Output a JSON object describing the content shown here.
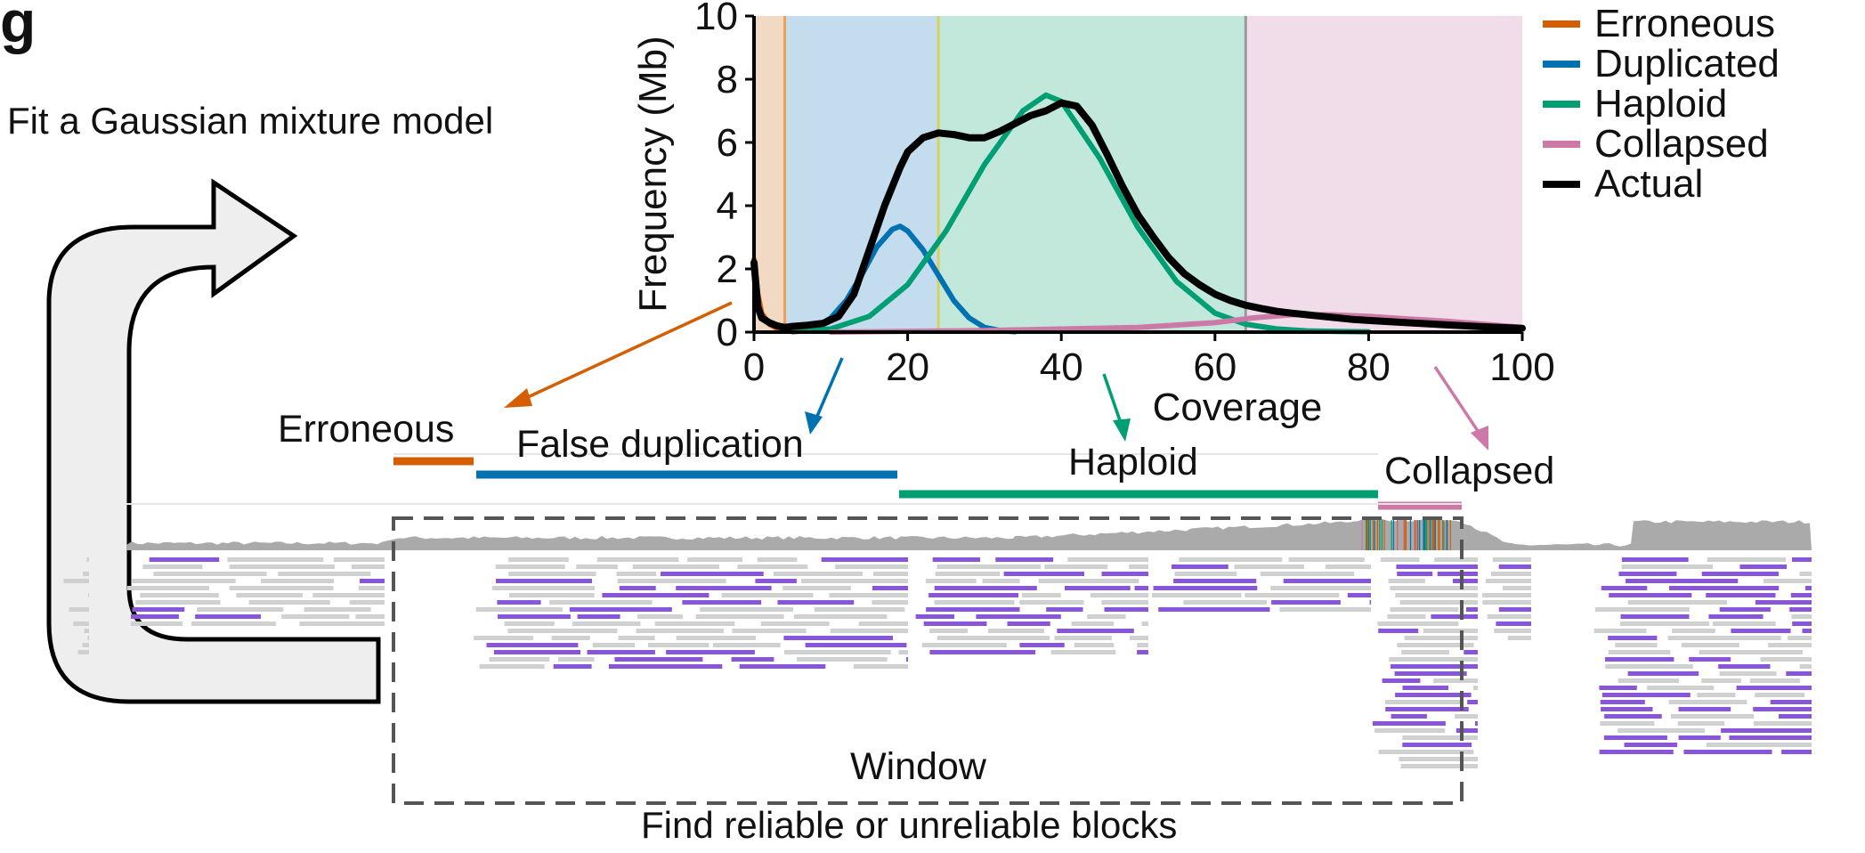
{
  "panel_letter": "g",
  "steps": {
    "fit_text": "Fit a Gaussian mixture model",
    "bottom_text": "Find reliable or unreliable blocks",
    "window_label": "Window"
  },
  "segments": [
    {
      "key": "erroneous",
      "label": "Erroneous",
      "color": "#d55e00"
    },
    {
      "key": "false_duplication",
      "label": "False duplication",
      "color": "#0072b2"
    },
    {
      "key": "haploid",
      "label": "Haploid",
      "color": "#009e73"
    },
    {
      "key": "collapsed",
      "label": "Collapsed",
      "color": "#cc79a7"
    }
  ],
  "legend": [
    {
      "label": "Erroneous",
      "color": "#d55e00"
    },
    {
      "label": "Duplicated",
      "color": "#0072b2"
    },
    {
      "label": "Haploid",
      "color": "#009e73"
    },
    {
      "label": "Collapsed",
      "color": "#cc79a7"
    },
    {
      "label": "Actual",
      "color": "#000000"
    }
  ],
  "chart_data": {
    "type": "line",
    "xlabel": "Coverage",
    "ylabel": "Frequency (Mb)",
    "xlim": [
      0,
      100
    ],
    "ylim": [
      0,
      10
    ],
    "x_ticks": [
      0,
      20,
      40,
      60,
      80,
      100
    ],
    "y_ticks": [
      0,
      2,
      4,
      6,
      8,
      10
    ],
    "regions": [
      {
        "name": "Erroneous",
        "from": 0,
        "to": 4,
        "color": "#f2d9c4"
      },
      {
        "name": "Duplicated",
        "from": 4,
        "to": 24,
        "color": "#c3dcee"
      },
      {
        "name": "Haploid",
        "from": 24,
        "to": 64,
        "color": "#c2e8db"
      },
      {
        "name": "Collapsed",
        "from": 64,
        "to": 100,
        "color": "#f1dcea"
      }
    ],
    "series": [
      {
        "name": "Erroneous",
        "color": "#d55e00",
        "x": [
          0,
          0.5,
          1,
          2,
          3,
          4,
          5
        ],
        "y": [
          2.3,
          1.2,
          0.6,
          0.25,
          0.12,
          0.08,
          0.05
        ]
      },
      {
        "name": "Duplicated",
        "color": "#0072b2",
        "x": [
          5,
          8,
          10,
          12,
          14,
          16,
          18,
          19,
          20,
          22,
          24,
          26,
          28,
          30,
          32,
          34
        ],
        "y": [
          0.02,
          0.15,
          0.45,
          1.0,
          1.8,
          2.7,
          3.25,
          3.35,
          3.2,
          2.6,
          1.8,
          1.0,
          0.45,
          0.15,
          0.05,
          0.01
        ]
      },
      {
        "name": "Haploid",
        "color": "#009e73",
        "x": [
          5,
          10,
          15,
          20,
          25,
          30,
          35,
          38,
          40,
          45,
          50,
          55,
          60,
          64,
          68,
          72,
          76,
          80
        ],
        "y": [
          0.01,
          0.1,
          0.5,
          1.5,
          3.2,
          5.3,
          7.0,
          7.5,
          7.3,
          5.5,
          3.3,
          1.6,
          0.6,
          0.25,
          0.1,
          0.04,
          0.02,
          0.01
        ]
      },
      {
        "name": "Collapsed",
        "color": "#cc79a7",
        "x": [
          10,
          30,
          50,
          60,
          65,
          70,
          75,
          80,
          85,
          90,
          95,
          100
        ],
        "y": [
          0.0,
          0.05,
          0.15,
          0.3,
          0.45,
          0.55,
          0.55,
          0.5,
          0.42,
          0.35,
          0.25,
          0.15
        ]
      },
      {
        "name": "Actual",
        "color": "#000000",
        "x": [
          0,
          0.5,
          1,
          2,
          3,
          4,
          5,
          7,
          9,
          11,
          13,
          15,
          17,
          19,
          20,
          22,
          24,
          26,
          28,
          30,
          32,
          34,
          36,
          38,
          40,
          42,
          44,
          46,
          48,
          50,
          52,
          54,
          56,
          58,
          60,
          62,
          64,
          66,
          68,
          70,
          72,
          74,
          76,
          78,
          80,
          85,
          90,
          95,
          100
        ],
        "y": [
          2.2,
          0.8,
          0.45,
          0.3,
          0.2,
          0.15,
          0.18,
          0.22,
          0.28,
          0.5,
          1.2,
          2.6,
          4.0,
          5.2,
          5.7,
          6.15,
          6.3,
          6.25,
          6.15,
          6.15,
          6.35,
          6.6,
          6.85,
          7.0,
          7.25,
          7.15,
          6.55,
          5.6,
          4.6,
          3.7,
          3.0,
          2.35,
          1.85,
          1.5,
          1.2,
          1.0,
          0.85,
          0.75,
          0.66,
          0.6,
          0.55,
          0.5,
          0.45,
          0.4,
          0.37,
          0.3,
          0.23,
          0.17,
          0.12
        ]
      }
    ]
  }
}
